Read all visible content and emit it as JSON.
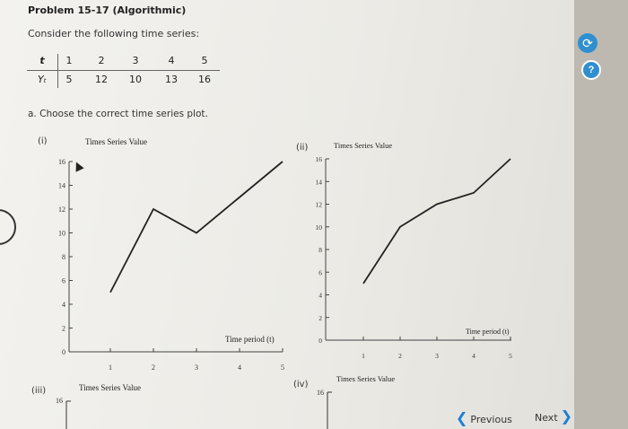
{
  "problem": {
    "title": "Problem 15-17 (Algorithmic)",
    "intro": "Consider the following time series:"
  },
  "table": {
    "t_label": "t",
    "y_label": "Yₜ",
    "t_values": [
      "1",
      "2",
      "3",
      "4",
      "5"
    ],
    "y_values": [
      "5",
      "12",
      "10",
      "13",
      "16"
    ]
  },
  "question_a": "a. Choose the correct time series plot.",
  "plots": [
    {
      "label": "(i)",
      "title": "Times Series Value",
      "xlabel": "Time period (t)",
      "y_ticks": [
        "16",
        "14",
        "12",
        "10",
        "8",
        "6",
        "4",
        "2",
        "0"
      ],
      "x_ticks": [
        "1",
        "2",
        "3",
        "4",
        "5"
      ],
      "values": [
        5,
        12,
        10,
        13,
        16
      ]
    },
    {
      "label": "(ii)",
      "title": "Times Series Value",
      "xlabel": "Time period (t)",
      "y_ticks": [
        "16",
        "14",
        "12",
        "10",
        "8",
        "6",
        "4",
        "2",
        "0"
      ],
      "x_ticks": [
        "1",
        "2",
        "3",
        "4",
        "5"
      ],
      "values": [
        5,
        10,
        12,
        13,
        16
      ]
    },
    {
      "label": "(iii)",
      "title": "Times Series Value",
      "y_top": "16"
    },
    {
      "label": "(iv)",
      "title": "Times Series Value",
      "y_top": "16"
    }
  ],
  "chart_data": [
    {
      "type": "line",
      "x": [
        1,
        2,
        3,
        4,
        5
      ],
      "series": [
        {
          "values": [
            5,
            12,
            10,
            13,
            16
          ]
        }
      ],
      "title": "Times Series Value",
      "xlabel": "Time period (t)",
      "ylim": [
        0,
        16
      ]
    },
    {
      "type": "line",
      "x": [
        1,
        2,
        3,
        4,
        5
      ],
      "series": [
        {
          "values": [
            5,
            10,
            12,
            13,
            16
          ]
        }
      ],
      "title": "Times Series Value",
      "xlabel": "Time period (t)",
      "ylim": [
        0,
        16
      ]
    }
  ],
  "nav": {
    "previous": "Previous",
    "next": "Next"
  },
  "colors": {
    "accent": "#2f8fcf",
    "nav_chevron": "#1c7fd6"
  }
}
